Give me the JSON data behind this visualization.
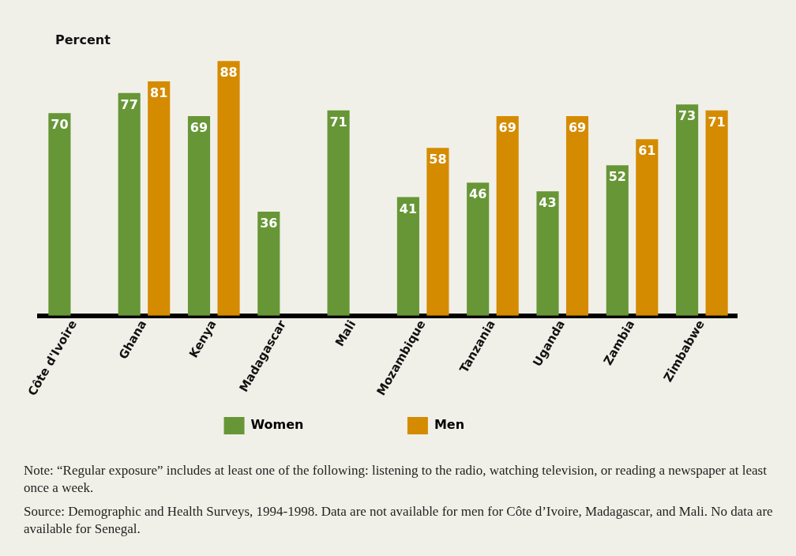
{
  "chart_data": {
    "type": "bar",
    "ylabel": "Percent",
    "categories": [
      "Côte d'Ivoire",
      "Ghana",
      "Kenya",
      "Madagascar",
      "Mali",
      "Mozambique",
      "Tanzania",
      "Uganda",
      "Zambia",
      "Zimbabwe"
    ],
    "series": [
      {
        "name": "Women",
        "color": "#679637",
        "values": [
          70,
          77,
          69,
          36,
          71,
          41,
          46,
          43,
          52,
          73
        ]
      },
      {
        "name": "Men",
        "color": "#d58b00",
        "values": [
          null,
          81,
          88,
          null,
          null,
          58,
          69,
          69,
          61,
          71
        ]
      }
    ],
    "data_labels": true,
    "legend": "bottom",
    "grid": false,
    "annotations": [
      "Note: “Regular exposure” includes at least one of the following: listening to the radio, watching television, or reading a newspaper at least once a week.",
      "Source: Demographic and Health Surveys, 1994-1998. Data are not available for men for Côte d’Ivoire, Madagascar, and Mali. No data are available for Senegal."
    ]
  }
}
